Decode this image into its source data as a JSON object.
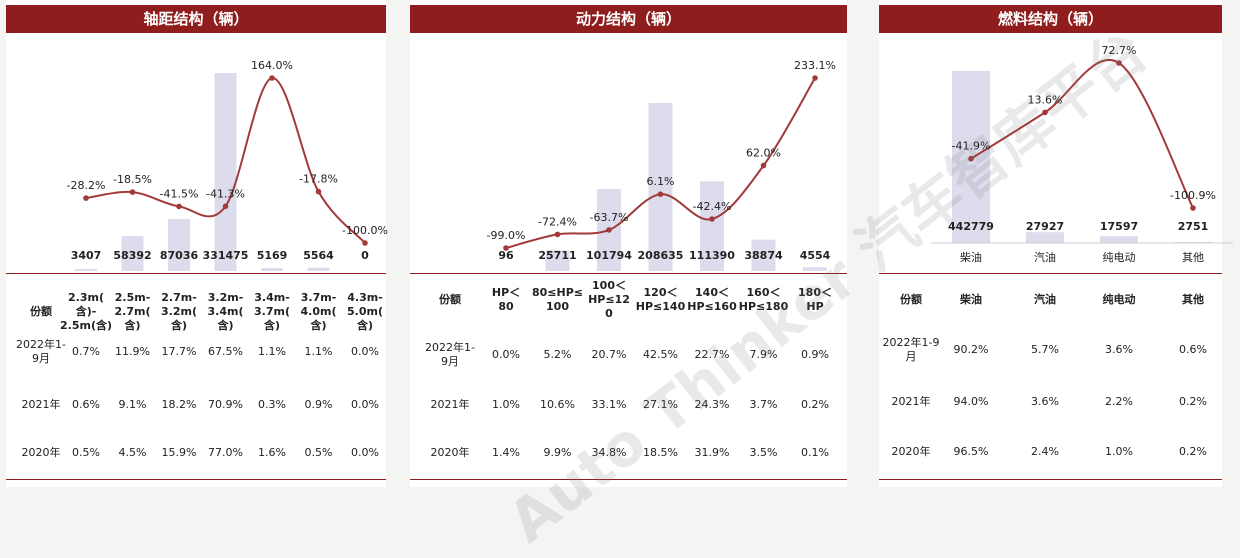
{
  "watermark": "Auto Thinker 汽车智库平台",
  "colors": {
    "banner": "#8f1d1d",
    "bar": "#dcdcec",
    "line": "#a33a3a"
  },
  "chart_data": [
    {
      "type": "bar",
      "title": "轴距结构（辆）",
      "categories": [
        "2.3m(含)-2.5m(含)",
        "2.5m-2.7m(含)",
        "2.7m-3.2m(含)",
        "3.2m-3.4m(含)",
        "3.4m-3.7m(含)",
        "3.7m-4.0m(含)",
        "4.3m-5.0m(含)"
      ],
      "category_lines": [
        [
          "2.3m(",
          "含)-",
          "2.5m(含)"
        ],
        [
          "2.5m-",
          "2.7m(",
          "含)"
        ],
        [
          "2.7m-",
          "3.2m(",
          "含)"
        ],
        [
          "3.2m-",
          "3.4m(",
          "含)"
        ],
        [
          "3.4m-",
          "3.7m(",
          "含)"
        ],
        [
          "3.7m-",
          "4.0m(",
          "含)"
        ],
        [
          "4.3m-",
          "5.0m(",
          "含)"
        ]
      ],
      "values": [
        3407,
        58392,
        87036,
        331475,
        5169,
        5564,
        0
      ],
      "value_labels": [
        "3407",
        "58392",
        "87036",
        "331475",
        "5169",
        "5564",
        "0"
      ],
      "growth": [
        -28.2,
        -18.5,
        -41.5,
        -41.3,
        164.0,
        -17.8,
        -100.0
      ],
      "growth_labels": [
        "-28.2%",
        "-18.5%",
        "-41.5%",
        "-41.3%",
        "164.0%",
        "-17.8%",
        "-100.0%"
      ],
      "table": {
        "header": "份额",
        "rows": [
          {
            "label": [
              "2022年1-",
              "9月"
            ],
            "cells": [
              "0.7%",
              "11.9%",
              "17.7%",
              "67.5%",
              "1.1%",
              "1.1%",
              "0.0%"
            ]
          },
          {
            "label": [
              "2021年"
            ],
            "cells": [
              "0.6%",
              "9.1%",
              "18.2%",
              "70.9%",
              "0.3%",
              "0.9%",
              "0.0%"
            ]
          },
          {
            "label": [
              "2020年"
            ],
            "cells": [
              "0.5%",
              "4.5%",
              "15.9%",
              "77.0%",
              "1.6%",
              "0.5%",
              "0.0%"
            ]
          }
        ]
      }
    },
    {
      "type": "bar",
      "title": "动力结构（辆）",
      "categories": [
        "HP＜80",
        "80≤HP≤100",
        "100＜HP≤120",
        "120＜HP≤140",
        "140＜HP≤160",
        "160＜HP≤180",
        "180＜HP"
      ],
      "category_lines": [
        [
          "HP＜",
          "80"
        ],
        [
          "80≤HP≤",
          "100"
        ],
        [
          "100＜",
          "HP≤12",
          "0"
        ],
        [
          "120＜",
          "HP≤140"
        ],
        [
          "140＜",
          "HP≤160"
        ],
        [
          "160＜",
          "HP≤180"
        ],
        [
          "180＜",
          "HP"
        ]
      ],
      "values": [
        96,
        25711,
        101794,
        208635,
        111390,
        38874,
        4554
      ],
      "value_labels": [
        "96",
        "25711",
        "101794",
        "208635",
        "111390",
        "38874",
        "4554"
      ],
      "growth": [
        -99.0,
        -72.4,
        -63.7,
        6.1,
        -42.4,
        62.0,
        233.1
      ],
      "growth_labels": [
        "-99.0%",
        "-72.4%",
        "-63.7%",
        "6.1%",
        "-42.4%",
        "62.0%",
        "233.1%"
      ],
      "table": {
        "header": "份额",
        "rows": [
          {
            "label": [
              "2022年1-",
              "9月"
            ],
            "cells": [
              "0.0%",
              "5.2%",
              "20.7%",
              "42.5%",
              "22.7%",
              "7.9%",
              "0.9%"
            ]
          },
          {
            "label": [
              "2021年"
            ],
            "cells": [
              "1.0%",
              "10.6%",
              "33.1%",
              "27.1%",
              "24.3%",
              "3.7%",
              "0.2%"
            ]
          },
          {
            "label": [
              "2020年"
            ],
            "cells": [
              "1.4%",
              "9.9%",
              "34.8%",
              "18.5%",
              "31.9%",
              "3.5%",
              "0.1%"
            ]
          }
        ]
      }
    },
    {
      "type": "bar",
      "title": "燃料结构（辆）",
      "categories": [
        "柴油",
        "汽油",
        "纯电动",
        "其他"
      ],
      "category_lines": [
        [
          "柴油"
        ],
        [
          "汽油"
        ],
        [
          "纯电动"
        ],
        [
          "其他"
        ]
      ],
      "values": [
        442779,
        27927,
        17597,
        2751
      ],
      "value_labels": [
        "442779",
        "27927",
        "17597",
        "2751"
      ],
      "growth": [
        -41.9,
        13.6,
        72.7,
        -100.9
      ],
      "growth_labels": [
        "-41.9%",
        "13.6%",
        "72.7%",
        "-100.9%"
      ],
      "table": {
        "header": "份额",
        "rows": [
          {
            "label": [
              "2022年1-9",
              "月"
            ],
            "cells": [
              "90.2%",
              "5.7%",
              "3.6%",
              "0.6%"
            ]
          },
          {
            "label": [
              "2021年"
            ],
            "cells": [
              "94.0%",
              "3.6%",
              "2.2%",
              "0.2%"
            ]
          },
          {
            "label": [
              "2020年"
            ],
            "cells": [
              "96.5%",
              "2.4%",
              "1.0%",
              "0.2%"
            ]
          }
        ]
      }
    }
  ]
}
